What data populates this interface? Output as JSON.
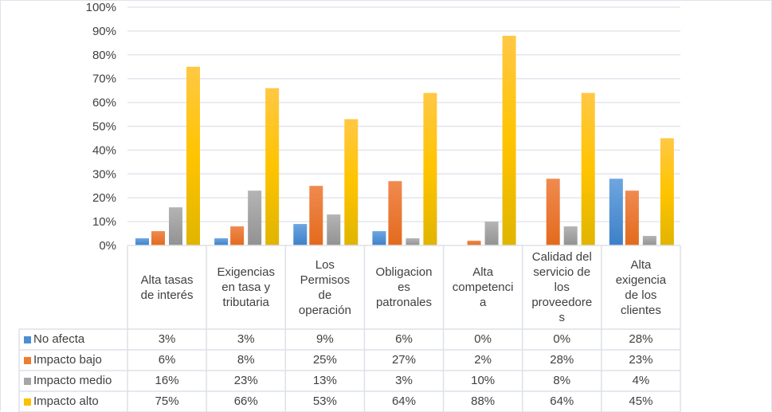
{
  "chart_data": {
    "type": "bar",
    "title": "",
    "xlabel": "",
    "ylabel": "",
    "ylim": [
      0,
      100
    ],
    "y_ticks": [
      "0%",
      "10%",
      "20%",
      "30%",
      "40%",
      "50%",
      "60%",
      "70%",
      "80%",
      "90%",
      "100%"
    ],
    "grid": true,
    "legend_placement": "data-table-left",
    "categories": [
      "Alta tasas\nde interés",
      "Exigencias\nen tasa y\ntributaria",
      "Los\nPermisos\nde\noperación",
      "Obligacion\nes\npatronales",
      "Alta\ncompetenci\na",
      "Calidad del\nservicio de\nlos\nproveedore\ns",
      "Alta\nexigencia\nde los\nclientes"
    ],
    "series": [
      {
        "name": "No afecta",
        "color": "#4a8fd6",
        "values": [
          3,
          3,
          9,
          6,
          0,
          0,
          28
        ],
        "labels": [
          "3%",
          "3%",
          "9%",
          "6%",
          "0%",
          "0%",
          "28%"
        ]
      },
      {
        "name": "Impacto bajo",
        "color": "#ed7d31",
        "values": [
          6,
          8,
          25,
          27,
          2,
          28,
          23
        ],
        "labels": [
          "6%",
          "8%",
          "25%",
          "27%",
          "2%",
          "28%",
          "23%"
        ]
      },
      {
        "name": "Impacto medio",
        "color": "#a5a5a5",
        "values": [
          16,
          23,
          13,
          3,
          10,
          8,
          4
        ],
        "labels": [
          "16%",
          "23%",
          "13%",
          "3%",
          "10%",
          "8%",
          "4%"
        ]
      },
      {
        "name": "Impacto alto",
        "color": "#ffc000",
        "values": [
          75,
          66,
          53,
          64,
          88,
          64,
          45
        ],
        "labels": [
          "75%",
          "66%",
          "53%",
          "64%",
          "88%",
          "64%",
          "45%"
        ]
      }
    ]
  }
}
